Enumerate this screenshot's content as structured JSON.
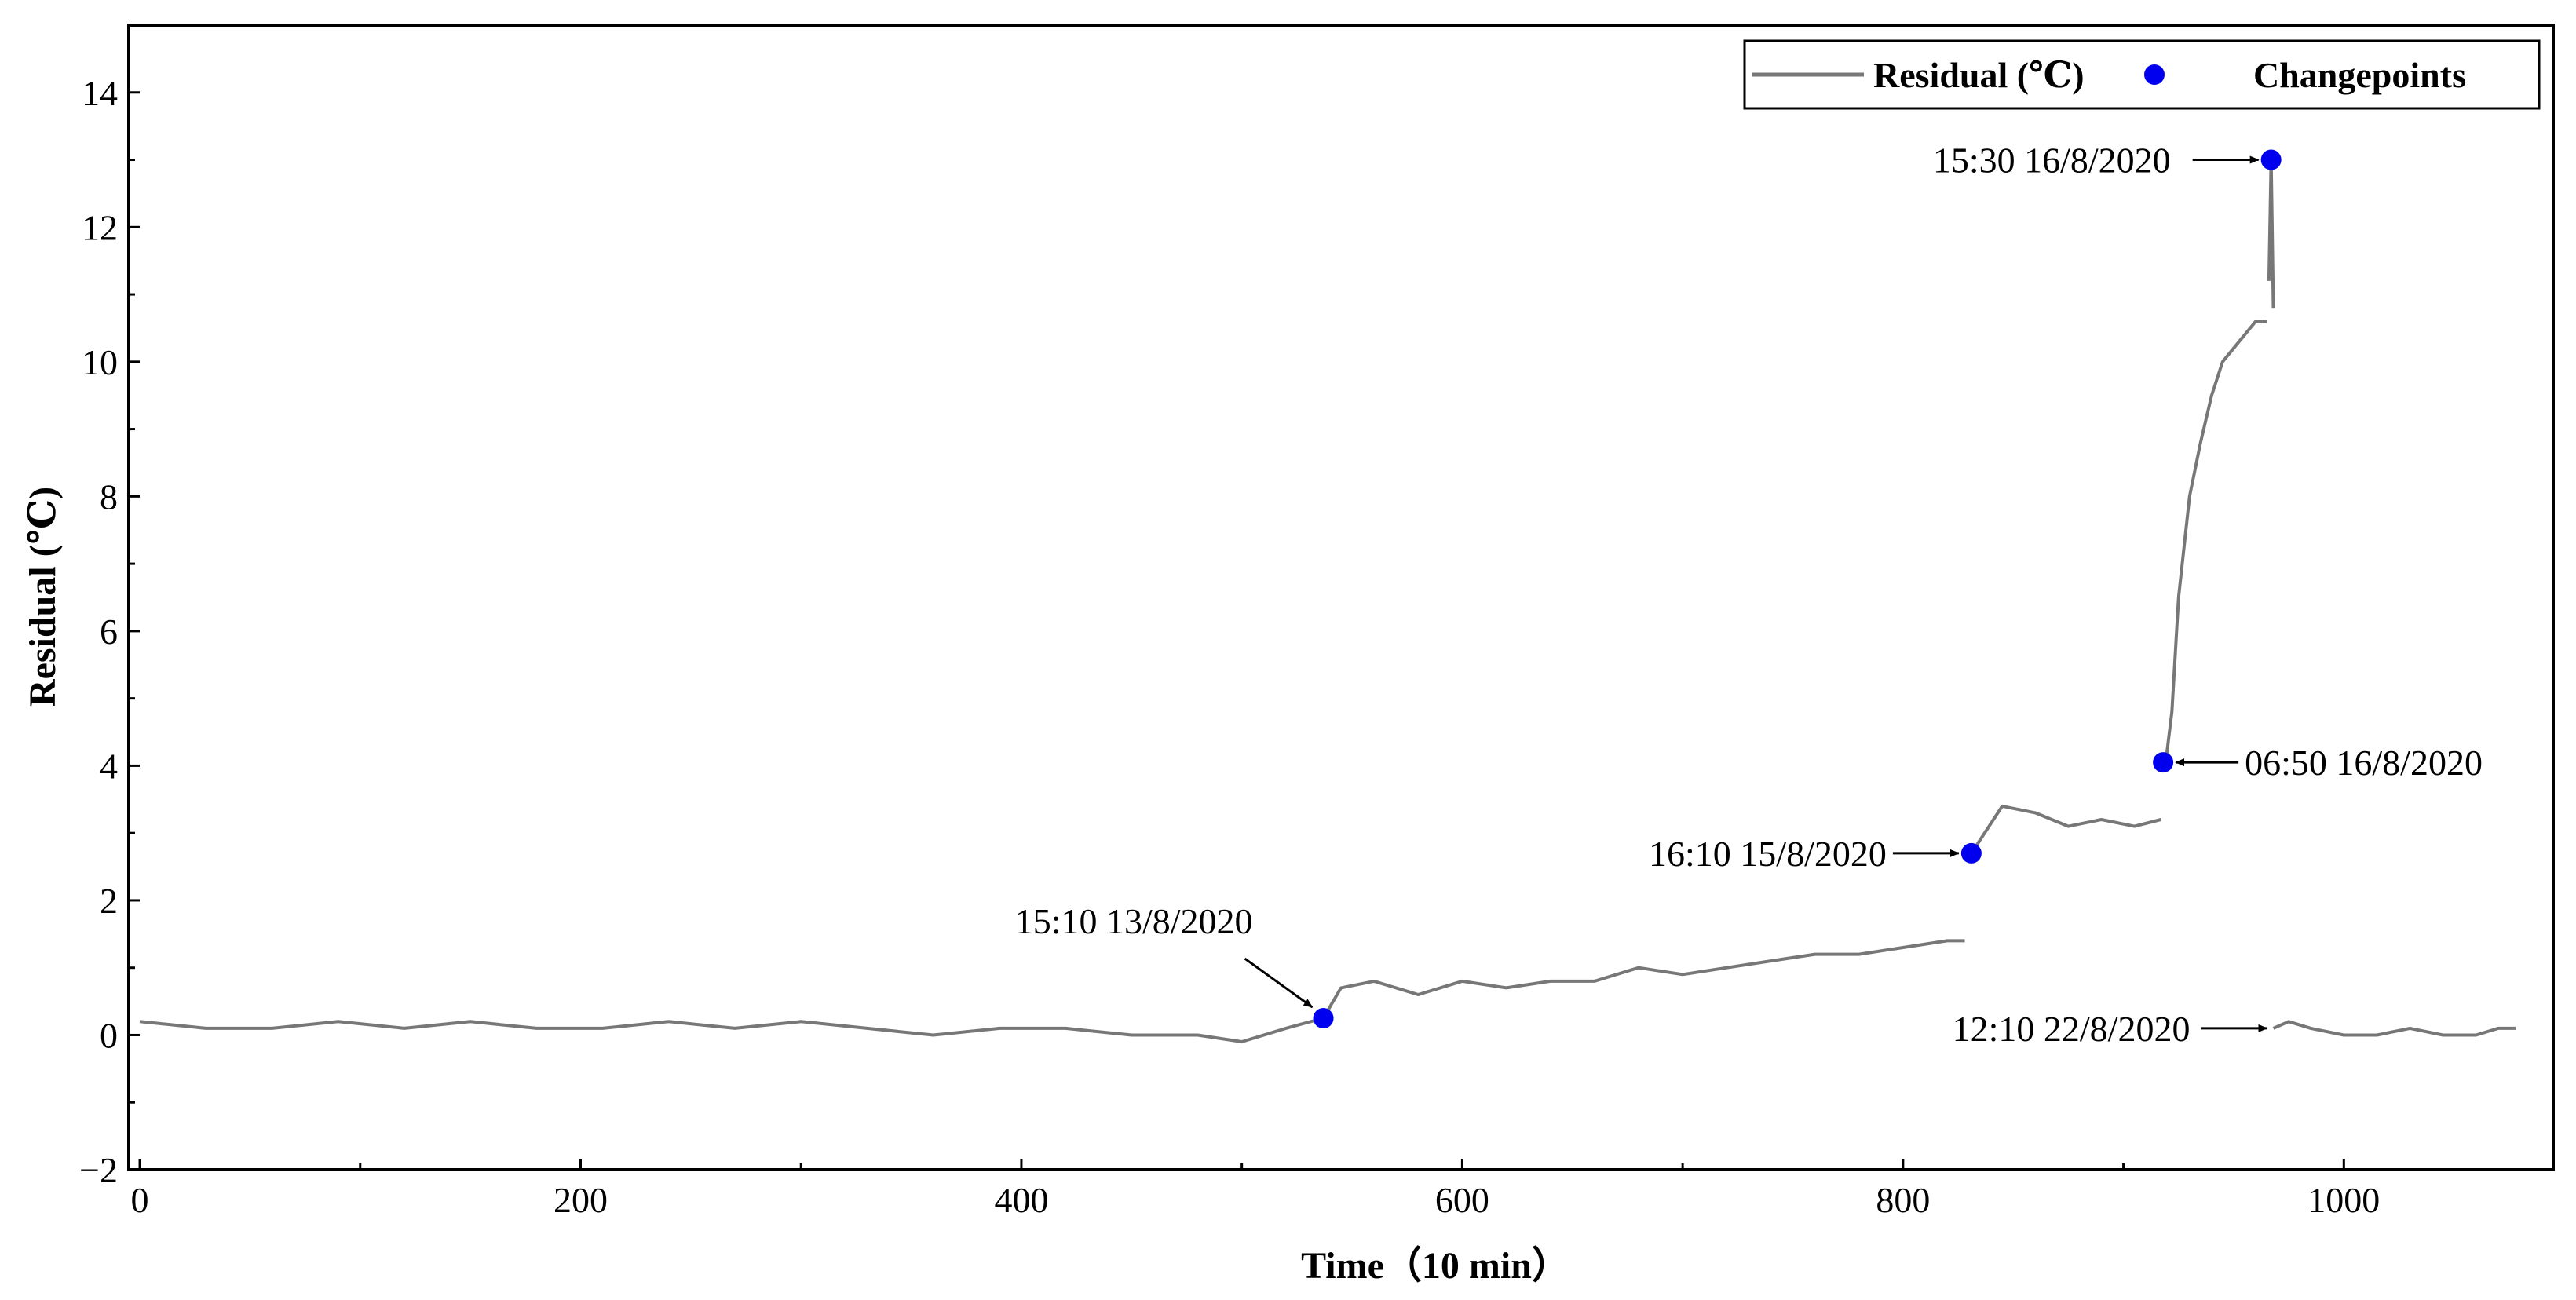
{
  "chart_data": {
    "type": "line",
    "title": "",
    "xlabel": "Time（10 min）",
    "ylabel": "Residual (℃)",
    "xlim": [
      -5,
      1095
    ],
    "ylim": [
      -2,
      15
    ],
    "xticks": [
      0,
      200,
      400,
      600,
      800,
      1000
    ],
    "yticks": [
      -2,
      0,
      2,
      4,
      6,
      8,
      10,
      12,
      14
    ],
    "xtick_labels": [
      "0",
      "200",
      "400",
      "600",
      "800",
      "1000"
    ],
    "ytick_labels": [
      "−2",
      "0",
      "2",
      "4",
      "6",
      "8",
      "10",
      "12",
      "14"
    ],
    "grid": false,
    "legend": {
      "position": "top-right",
      "entries": [
        "Residual (℃)",
        "Changepoints"
      ]
    },
    "series": [
      {
        "name": "Residual (℃)",
        "color": "#777777",
        "segments": [
          {
            "x": [
              0,
              30,
              60,
              90,
              120,
              150,
              180,
              210,
              240,
              270,
              300,
              330,
              360,
              390,
              420,
              450,
              480,
              500,
              520,
              537
            ],
            "y": [
              0.2,
              0.1,
              0.1,
              0.2,
              0.1,
              0.2,
              0.1,
              0.1,
              0.2,
              0.1,
              0.2,
              0.1,
              0.0,
              0.1,
              0.1,
              0.0,
              0.0,
              -0.1,
              0.1,
              0.25
            ]
          },
          {
            "x": [
              537,
              545,
              560,
              580,
              600,
              620,
              640,
              660,
              680,
              700,
              720,
              740,
              760,
              780,
              800,
              820,
              828
            ],
            "y": [
              0.25,
              0.7,
              0.8,
              0.6,
              0.8,
              0.7,
              0.8,
              0.8,
              1.0,
              0.9,
              1.0,
              1.1,
              1.2,
              1.2,
              1.3,
              1.4,
              1.4
            ]
          },
          {
            "x": [
              831,
              835,
              845,
              860,
              875,
              890,
              905,
              917
            ],
            "y": [
              2.7,
              2.9,
              3.4,
              3.3,
              3.1,
              3.2,
              3.1,
              3.2
            ]
          },
          {
            "x": [
              919,
              922,
              925,
              930,
              935,
              940,
              945,
              950,
              955,
              960,
              965
            ],
            "y": [
              4.0,
              4.8,
              6.5,
              8.0,
              8.8,
              9.5,
              10.0,
              10.2,
              10.4,
              10.6,
              10.6
            ]
          },
          {
            "x": [
              966,
              967
            ],
            "y": [
              11.2,
              13.0
            ]
          },
          {
            "x": [
              967,
              968
            ],
            "y": [
              13.0,
              10.8
            ]
          },
          {
            "x": [
              968,
              975,
              985,
              1000,
              1015,
              1030,
              1045,
              1060,
              1070,
              1078
            ],
            "y": [
              0.1,
              0.2,
              0.1,
              0.0,
              0.0,
              0.1,
              0.0,
              0.0,
              0.1,
              0.1
            ]
          }
        ]
      },
      {
        "name": "Changepoints",
        "color": "#0000ee",
        "x": [
          537,
          831,
          918,
          967
        ],
        "y": [
          0.25,
          2.7,
          4.05,
          13.0
        ]
      }
    ],
    "annotations": [
      {
        "text": "15:10 13/8/2020",
        "x": 537,
        "y": 0.25
      },
      {
        "text": "16:10 15/8/2020",
        "x": 831,
        "y": 2.7
      },
      {
        "text": "06:50 16/8/2020",
        "x": 918,
        "y": 4.05
      },
      {
        "text": "15:30 16/8/2020",
        "x": 967,
        "y": 13.0
      },
      {
        "text": "12:10 22/8/2020",
        "x": 968,
        "y": 0.1
      }
    ]
  }
}
